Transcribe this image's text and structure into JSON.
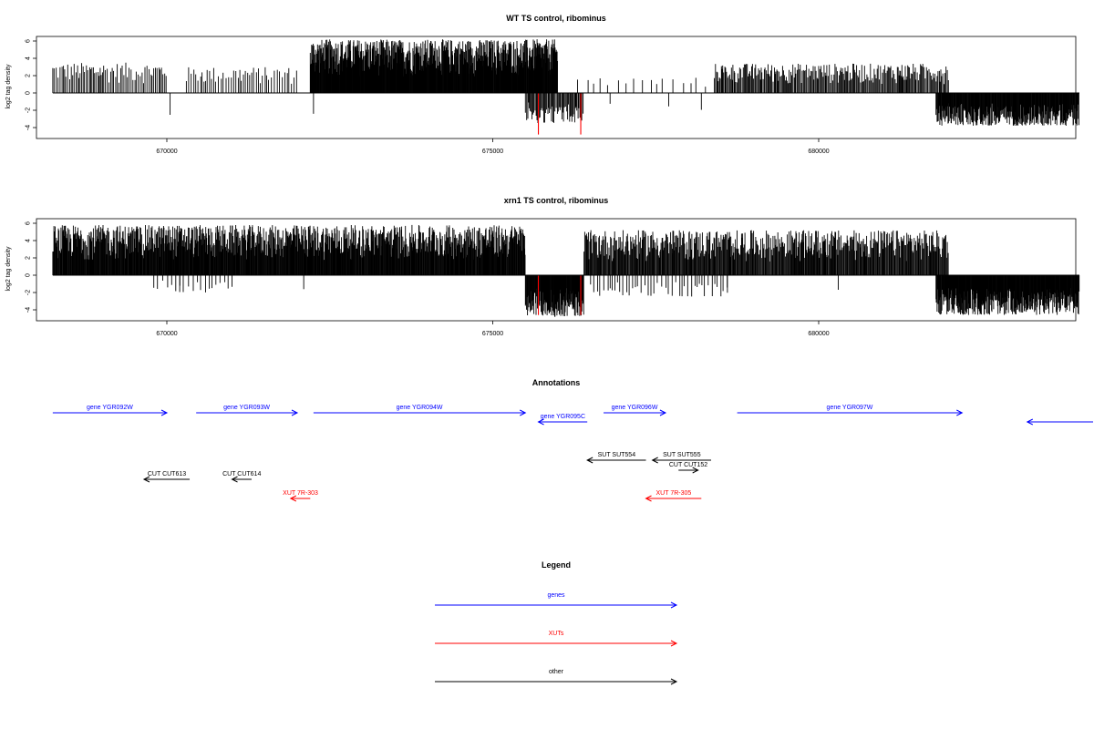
{
  "colors": {
    "genes": "#0000ff",
    "xuts": "#ff0000",
    "other": "#000000",
    "highlight": "#ff0000",
    "bars": "#000000"
  },
  "chart_data": [
    {
      "type": "bar",
      "title": "WT TS control, ribominus",
      "ylabel": "log2 tag density",
      "xlabel": "",
      "xlim": [
        668200,
        684400
      ],
      "ylim": [
        -5,
        6.6
      ],
      "xticks": [
        670000,
        675000,
        680000
      ],
      "yticks": [
        -4,
        -2,
        0,
        2,
        4,
        6
      ],
      "grid": false,
      "segments": [
        {
          "from": 668250,
          "to": 670000,
          "strand": "+",
          "dens": 0.25,
          "max": 3.5
        },
        {
          "from": 670300,
          "to": 672000,
          "strand": "+",
          "dens": 0.18,
          "max": 3.0
        },
        {
          "from": 672200,
          "to": 676000,
          "strand": "+",
          "dens": 0.95,
          "max": 6.2
        },
        {
          "from": 675500,
          "to": 676400,
          "strand": "-",
          "dens": 0.4,
          "max": 3.5
        },
        {
          "from": 676300,
          "to": 678400,
          "strand": "+",
          "dens": 0.05,
          "max": 1.8
        },
        {
          "from": 678400,
          "to": 682000,
          "strand": "+",
          "dens": 0.4,
          "max": 3.4
        },
        {
          "from": 681800,
          "to": 684000,
          "strand": "-",
          "dens": 0.85,
          "max": 3.8
        }
      ],
      "sparse_negatives": [
        670050,
        672250,
        676800,
        677700,
        678200
      ],
      "highlight_bars": [
        {
          "x": 675700,
          "y": -4.8
        },
        {
          "x": 676350,
          "y": -4.8
        }
      ]
    },
    {
      "type": "bar",
      "title": "xrn1 TS control, ribominus",
      "ylabel": "log2 tag density",
      "xlabel": "",
      "xlim": [
        668200,
        684400
      ],
      "ylim": [
        -5,
        6.6
      ],
      "xticks": [
        670000,
        675000,
        680000
      ],
      "yticks": [
        -4,
        -2,
        0,
        2,
        4,
        6
      ],
      "grid": false,
      "segments": [
        {
          "from": 668250,
          "to": 675500,
          "strand": "+",
          "dens": 0.75,
          "max": 5.8
        },
        {
          "from": 669800,
          "to": 671000,
          "strand": "-",
          "dens": 0.1,
          "max": 2.0
        },
        {
          "from": 675500,
          "to": 676400,
          "strand": "-",
          "dens": 0.95,
          "max": 4.8
        },
        {
          "from": 676400,
          "to": 682000,
          "strand": "+",
          "dens": 0.55,
          "max": 5.2
        },
        {
          "from": 676500,
          "to": 678600,
          "strand": "-",
          "dens": 0.12,
          "max": 2.5
        },
        {
          "from": 681800,
          "to": 684000,
          "strand": "-",
          "dens": 0.95,
          "max": 4.6
        }
      ],
      "sparse_negatives": [
        670200,
        671000,
        672100,
        678600,
        680300
      ],
      "highlight_bars": [
        {
          "x": 675700,
          "y": -4.6
        },
        {
          "x": 676350,
          "y": -4.6
        }
      ]
    }
  ],
  "annotations": {
    "title": "Annotations",
    "features": [
      {
        "label": "gene YGR092W",
        "x1": 668250,
        "x2": 670000,
        "strand": "+",
        "type": "gene",
        "row": 0
      },
      {
        "label": "gene YGR093W",
        "x1": 670450,
        "x2": 672000,
        "strand": "+",
        "type": "gene",
        "row": 0
      },
      {
        "label": "gene YGR094W",
        "x1": 672250,
        "x2": 675500,
        "strand": "+",
        "type": "gene",
        "row": 0
      },
      {
        "label": "gene YGR095C",
        "x1": 675700,
        "x2": 676450,
        "strand": "-",
        "type": "gene",
        "row": 1
      },
      {
        "label": "gene YGR096W",
        "x1": 676700,
        "x2": 677650,
        "strand": "+",
        "type": "gene",
        "row": 0
      },
      {
        "label": "gene YGR097W",
        "x1": 678750,
        "x2": 682200,
        "strand": "+",
        "type": "gene",
        "row": 0
      },
      {
        "label": "",
        "x1": 683200,
        "x2": 684400,
        "strand": "-",
        "type": "gene",
        "row": 1
      },
      {
        "label": "SUT SUT554",
        "x1": 676450,
        "x2": 677350,
        "strand": "-",
        "type": "other",
        "row": 2
      },
      {
        "label": "SUT SUT555",
        "x1": 677450,
        "x2": 678350,
        "strand": "-",
        "type": "other",
        "row": 2
      },
      {
        "label": "CUT CUT152",
        "x1": 677850,
        "x2": 678150,
        "strand": "+",
        "type": "other",
        "row": 3
      },
      {
        "label": "CUT CUT613",
        "x1": 669650,
        "x2": 670350,
        "strand": "-",
        "type": "other",
        "row": 4
      },
      {
        "label": "CUT CUT614",
        "x1": 671000,
        "x2": 671300,
        "strand": "-",
        "type": "other",
        "row": 4
      },
      {
        "label": "XUT 7R-303",
        "x1": 671900,
        "x2": 672200,
        "strand": "-",
        "type": "xut",
        "row": 5
      },
      {
        "label": "XUT 7R-305",
        "x1": 677350,
        "x2": 678200,
        "strand": "-",
        "type": "xut",
        "row": 5
      }
    ]
  },
  "legend": {
    "title": "Legend",
    "items": [
      {
        "label": "genes",
        "type": "gene"
      },
      {
        "label": "XUTs",
        "type": "xut"
      },
      {
        "label": "other",
        "type": "other"
      }
    ]
  }
}
